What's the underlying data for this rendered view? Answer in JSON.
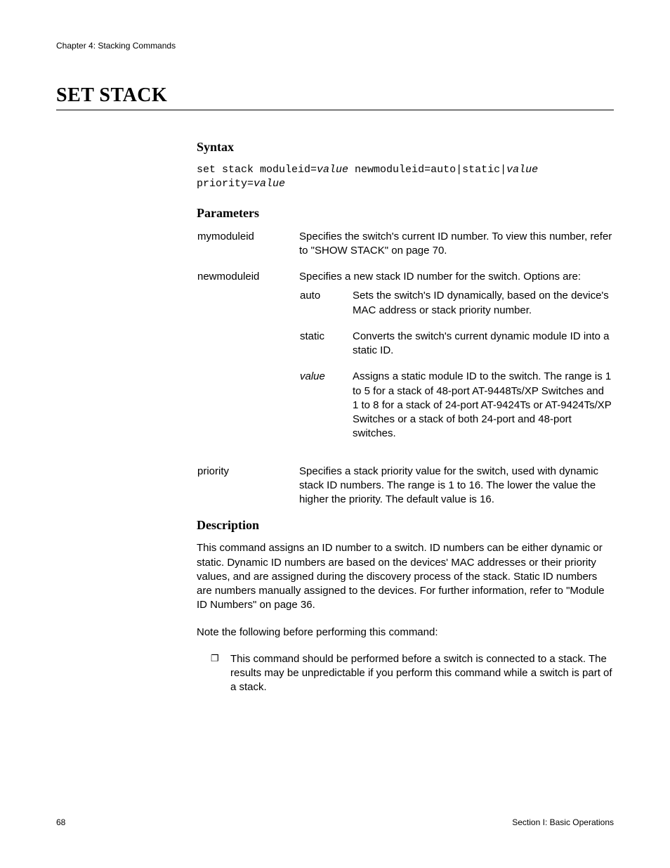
{
  "chapter": "Chapter 4: Stacking Commands",
  "title": "SET STACK",
  "syntax": {
    "heading": "Syntax",
    "pre": "set stack moduleid=",
    "val1": "value",
    "mid1": " newmoduleid=auto|static|",
    "val2": "value",
    "line2a": "priority=",
    "val3": "value"
  },
  "params": {
    "heading": "Parameters",
    "rows": {
      "mymoduleid": {
        "name": "mymoduleid",
        "desc": "Specifies the switch's current ID number. To view this number, refer to \"SHOW STACK\" on page 70."
      },
      "newmoduleid": {
        "name": "newmoduleid",
        "desc": "Specifies a new stack ID number for the switch. Options are:",
        "options": {
          "auto": {
            "name": "auto",
            "desc": "Sets the switch's ID dynamically, based on the device's MAC address or stack priority number."
          },
          "static": {
            "name": "static",
            "desc": "Converts the switch's current dynamic module ID into a static ID."
          },
          "value": {
            "name": "value",
            "desc": "Assigns a static module ID to the switch. The range is 1 to 5 for a stack of 48-port AT-9448Ts/XP Switches and 1 to 8 for a stack of 24-port AT-9424Ts or AT-9424Ts/XP Switches or a stack of both 24-port and 48-port switches."
          }
        }
      },
      "priority": {
        "name": "priority",
        "desc": "Specifies a stack priority value for the switch, used with dynamic stack ID numbers. The range is 1 to 16. The lower the value the higher the priority. The default value is 16."
      }
    }
  },
  "description": {
    "heading": "Description",
    "p1": "This command assigns an ID number to a switch. ID numbers can be either dynamic or static. Dynamic ID numbers are based on the devices' MAC addresses or their priority values, and are assigned during the discovery process of the stack. Static ID numbers are numbers manually assigned to the devices. For further information, refer to \"Module ID Numbers\" on page 36.",
    "p2": "Note the following before performing this command:",
    "bullet1": "This command should be performed before a switch is connected to a stack. The results may be unpredictable if you perform this command while a switch is part of a stack."
  },
  "footer": {
    "page": "68",
    "section": "Section I: Basic Operations"
  }
}
